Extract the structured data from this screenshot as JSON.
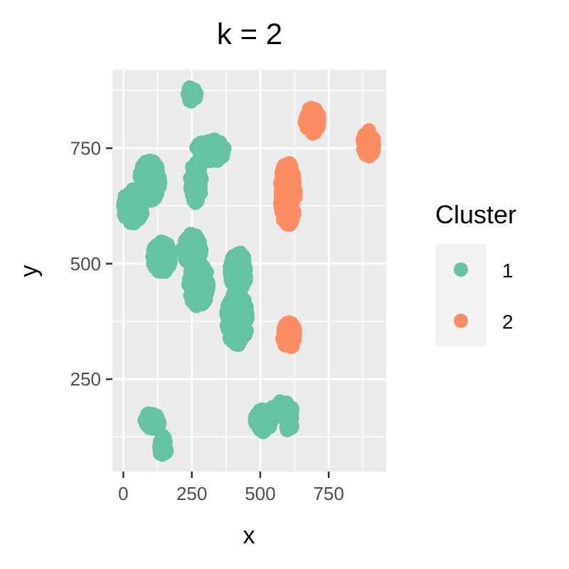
{
  "chart_data": {
    "type": "scatter",
    "title": "k = 2",
    "xlabel": "x",
    "ylabel": "y",
    "xlim": [
      -40,
      960
    ],
    "ylim": [
      50,
      920
    ],
    "x_ticks": [
      0,
      250,
      500,
      750
    ],
    "y_ticks": [
      250,
      500,
      750
    ],
    "x_tick_labels": [
      "0",
      "250",
      "500",
      "750"
    ],
    "y_tick_labels": [
      "250",
      "500",
      "750"
    ],
    "grid": true,
    "legend": {
      "title": "Cluster",
      "position": "right",
      "entries": [
        {
          "label": "1",
          "color": "#66c2a5"
        },
        {
          "label": "2",
          "color": "#fc8d62"
        }
      ]
    },
    "series": [
      {
        "name": "1",
        "color": "#66c2a5",
        "clusters": [
          {
            "cx": 250,
            "cy": 868,
            "rx": 18,
            "ry": 18,
            "n": 40
          },
          {
            "cx": 95,
            "cy": 680,
            "rx": 40,
            "ry": 45,
            "n": 160
          },
          {
            "cx": 35,
            "cy": 625,
            "rx": 38,
            "ry": 38,
            "n": 130
          },
          {
            "cx": 265,
            "cy": 675,
            "rx": 22,
            "ry": 45,
            "n": 90
          },
          {
            "cx": 320,
            "cy": 745,
            "rx": 55,
            "ry": 25,
            "n": 110
          },
          {
            "cx": 140,
            "cy": 515,
            "rx": 35,
            "ry": 35,
            "n": 120
          },
          {
            "cx": 250,
            "cy": 530,
            "rx": 35,
            "ry": 35,
            "n": 120
          },
          {
            "cx": 275,
            "cy": 455,
            "rx": 38,
            "ry": 48,
            "n": 170
          },
          {
            "cx": 420,
            "cy": 485,
            "rx": 32,
            "ry": 42,
            "n": 140
          },
          {
            "cx": 415,
            "cy": 380,
            "rx": 40,
            "ry": 58,
            "n": 210
          },
          {
            "cx": 105,
            "cy": 160,
            "rx": 30,
            "ry": 18,
            "n": 60
          },
          {
            "cx": 145,
            "cy": 105,
            "rx": 15,
            "ry": 25,
            "n": 45
          },
          {
            "cx": 510,
            "cy": 160,
            "rx": 30,
            "ry": 25,
            "n": 70
          },
          {
            "cx": 580,
            "cy": 185,
            "rx": 40,
            "ry": 18,
            "n": 70
          },
          {
            "cx": 605,
            "cy": 160,
            "rx": 15,
            "ry": 25,
            "n": 40
          }
        ]
      },
      {
        "name": "2",
        "color": "#fc8d62",
        "clusters": [
          {
            "cx": 690,
            "cy": 810,
            "rx": 28,
            "ry": 28,
            "n": 80
          },
          {
            "cx": 895,
            "cy": 760,
            "rx": 22,
            "ry": 30,
            "n": 70
          },
          {
            "cx": 600,
            "cy": 650,
            "rx": 30,
            "ry": 70,
            "n": 210
          },
          {
            "cx": 605,
            "cy": 345,
            "rx": 25,
            "ry": 28,
            "n": 80
          }
        ]
      }
    ]
  }
}
